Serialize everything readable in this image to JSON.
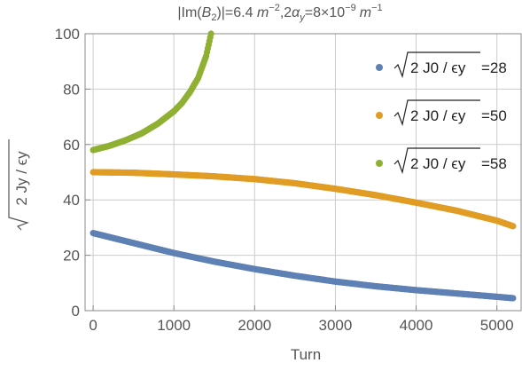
{
  "chart_data": {
    "type": "scatter",
    "title_parts": {
      "a": "|Im(",
      "b_base": "B",
      "b_sub": "2",
      "c": ")|=6.4 ",
      "m1": "m",
      "exp1": "−2",
      "d": ",2",
      "alpha": "α",
      "alpha_sub": "y",
      "e": "=8×10",
      "exp2": "−9",
      "m2": "m",
      "exp3": "−1"
    },
    "xlabel": "Turn",
    "ylabel_inner": "2 Jy / ϵy",
    "xlim": [
      -100,
      5300
    ],
    "ylim": [
      0,
      100
    ],
    "xticks": [
      0,
      1000,
      2000,
      3000,
      4000,
      5000
    ],
    "yticks": [
      0,
      20,
      40,
      60,
      80,
      100
    ],
    "grid": true,
    "legend_position": "top-right",
    "series": [
      {
        "name_inner": "2 J0 / ϵy",
        "name_value": "=28",
        "color": "#5E81B5",
        "x_range": [
          0,
          5200
        ],
        "points": [
          [
            0,
            28
          ],
          [
            500,
            24.4
          ],
          [
            1000,
            20.8
          ],
          [
            1500,
            17.7
          ],
          [
            2000,
            15
          ],
          [
            2500,
            12.6
          ],
          [
            3000,
            10.5
          ],
          [
            3500,
            8.8
          ],
          [
            4000,
            7.4
          ],
          [
            4500,
            6.2
          ],
          [
            5000,
            5
          ],
          [
            5200,
            4.5
          ]
        ]
      },
      {
        "name_inner": "2 J0 / ϵy",
        "name_value": "=50",
        "color": "#E19C24",
        "x_range": [
          0,
          5200
        ],
        "points": [
          [
            0,
            50
          ],
          [
            500,
            49.8
          ],
          [
            1000,
            49.2
          ],
          [
            1500,
            48.5
          ],
          [
            2000,
            47.5
          ],
          [
            2500,
            46
          ],
          [
            3000,
            44
          ],
          [
            3500,
            41.7
          ],
          [
            4000,
            39
          ],
          [
            4500,
            36.1
          ],
          [
            5000,
            32.5
          ],
          [
            5200,
            30.5
          ]
        ]
      },
      {
        "name_inner": "2 J0 / ϵy",
        "name_value": "=58",
        "color": "#8FB032",
        "x_range": [
          0,
          1460
        ],
        "points": [
          [
            0,
            58
          ],
          [
            200,
            59.5
          ],
          [
            400,
            61.5
          ],
          [
            600,
            64
          ],
          [
            800,
            67.5
          ],
          [
            1000,
            72
          ],
          [
            1100,
            75
          ],
          [
            1200,
            79
          ],
          [
            1300,
            84
          ],
          [
            1400,
            92
          ],
          [
            1460,
            100
          ]
        ]
      }
    ]
  }
}
